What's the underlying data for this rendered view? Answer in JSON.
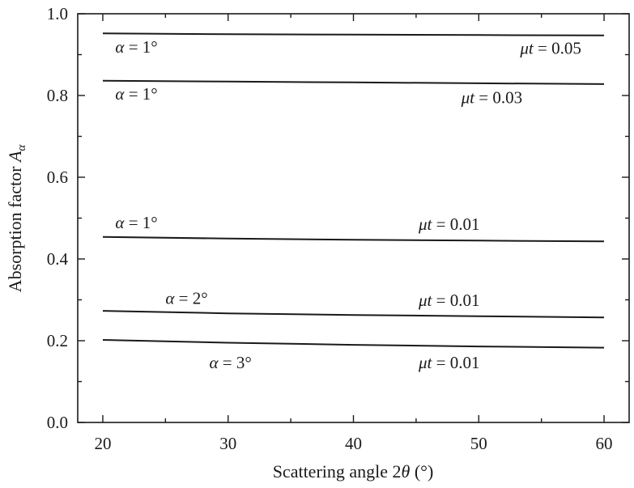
{
  "chart_data": {
    "type": "line",
    "xlabel": {
      "text": "Scattering angle 2",
      "symbol": "θ",
      "unit": " (°)"
    },
    "ylabel": {
      "text": "Absorption factor ",
      "symbol": "A",
      "subscript": "α"
    },
    "xlim": [
      18,
      62
    ],
    "ylim": [
      0.0,
      1.0
    ],
    "xticks": [
      20,
      30,
      40,
      50,
      60
    ],
    "xtick_labels": [
      "20",
      "30",
      "40",
      "50",
      "60"
    ],
    "yticks": [
      0.0,
      0.2,
      0.4,
      0.6,
      0.8,
      1.0
    ],
    "ytick_labels": [
      "0.0",
      "0.2",
      "0.4",
      "0.6",
      "0.8",
      "1.0"
    ],
    "grid": false,
    "series": [
      {
        "alpha_label": "α = 1°",
        "mut_label": "μt = 0.05",
        "x": [
          20,
          30,
          40,
          50,
          60
        ],
        "y": [
          0.952,
          0.95,
          0.949,
          0.948,
          0.947
        ]
      },
      {
        "alpha_label": "α = 1°",
        "mut_label": "μt = 0.03",
        "x": [
          20,
          30,
          40,
          50,
          60
        ],
        "y": [
          0.836,
          0.834,
          0.832,
          0.83,
          0.828
        ]
      },
      {
        "alpha_label": "α = 1°",
        "mut_label": "μt = 0.01",
        "x": [
          20,
          30,
          40,
          50,
          60
        ],
        "y": [
          0.454,
          0.45,
          0.447,
          0.445,
          0.443
        ]
      },
      {
        "alpha_label": "α = 2°",
        "mut_label": "μt = 0.01",
        "x": [
          20,
          30,
          40,
          50,
          60
        ],
        "y": [
          0.273,
          0.267,
          0.263,
          0.26,
          0.257
        ]
      },
      {
        "alpha_label": "α = 3°",
        "mut_label": "μt = 0.01",
        "x": [
          20,
          30,
          40,
          50,
          60
        ],
        "y": [
          0.202,
          0.195,
          0.19,
          0.186,
          0.183
        ]
      }
    ],
    "annotations": [
      {
        "series": 0,
        "kind": "alpha",
        "at_x": 21,
        "at_y": 0.905
      },
      {
        "series": 0,
        "kind": "mut",
        "at_x": 53.3,
        "at_y": 0.902
      },
      {
        "series": 1,
        "kind": "alpha",
        "at_x": 21,
        "at_y": 0.79
      },
      {
        "series": 1,
        "kind": "mut",
        "at_x": 48.6,
        "at_y": 0.781
      },
      {
        "series": 2,
        "kind": "alpha",
        "at_x": 21,
        "at_y": 0.475
      },
      {
        "series": 2,
        "kind": "mut",
        "at_x": 45.2,
        "at_y": 0.471
      },
      {
        "series": 3,
        "kind": "alpha",
        "at_x": 25,
        "at_y": 0.29
      },
      {
        "series": 3,
        "kind": "mut",
        "at_x": 45.2,
        "at_y": 0.285
      },
      {
        "series": 4,
        "kind": "alpha",
        "at_x": 28.5,
        "at_y": 0.133
      },
      {
        "series": 4,
        "kind": "mut",
        "at_x": 45.2,
        "at_y": 0.133
      }
    ]
  }
}
